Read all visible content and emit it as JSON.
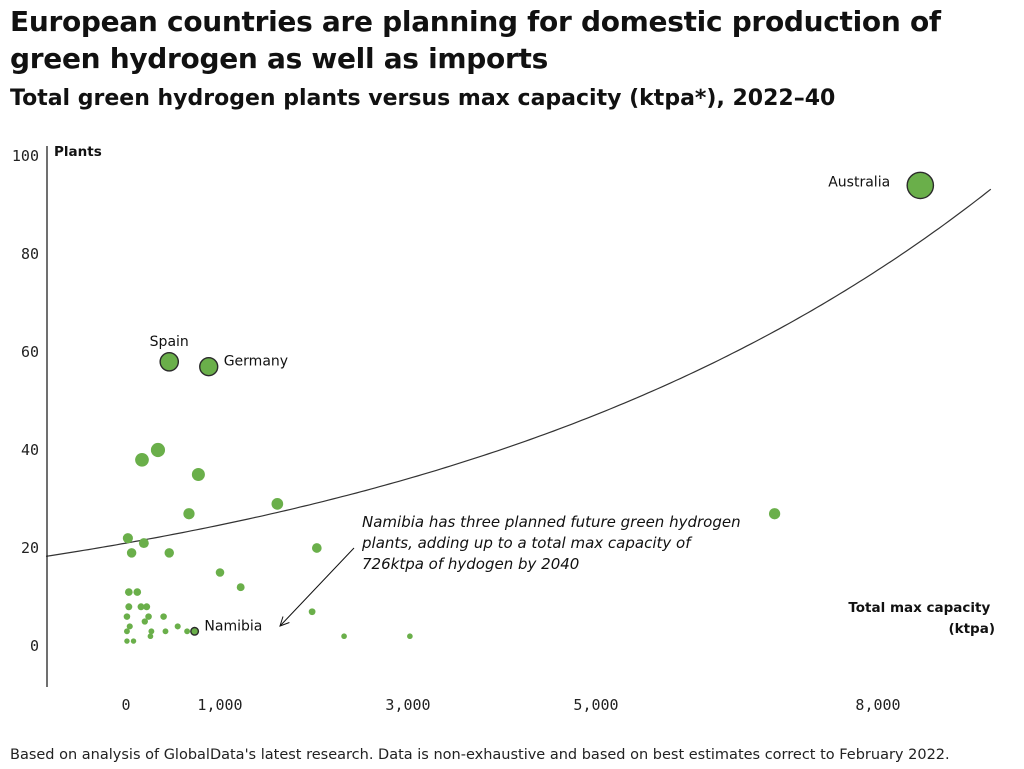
{
  "chart_data": {
    "type": "scatter",
    "title": "European countries are planning for domestic production of green hydrogen as well as imports",
    "subtitle": "Total green hydrogen plants versus max capacity (ktpa*), 2022–40",
    "xlabel": "Total max capacity (ktpa)",
    "ylabel": "Plants",
    "xlim": [
      -850,
      9200
    ],
    "ylim": [
      -8,
      100
    ],
    "x_ticks": [
      {
        "value": 0,
        "label": "0"
      },
      {
        "value": 1000,
        "label": "1,000"
      },
      {
        "value": 3000,
        "label": "3,000"
      },
      {
        "value": 5000,
        "label": "5,000"
      },
      {
        "value": 8000,
        "label": "8,000"
      }
    ],
    "y_ticks": [
      {
        "value": 0,
        "label": "0"
      },
      {
        "value": 20,
        "label": "20"
      },
      {
        "value": 40,
        "label": "40"
      },
      {
        "value": 60,
        "label": "60"
      },
      {
        "value": 80,
        "label": "80"
      },
      {
        "value": 100,
        "label": "100"
      }
    ],
    "grid": false,
    "point_color": "#6aaf4a",
    "outline_color": "#2b2b2b",
    "points": [
      {
        "x": 8450,
        "y": 94,
        "label": "Australia",
        "outlined": true
      },
      {
        "x": 460,
        "y": 58,
        "label": "Spain",
        "outlined": true
      },
      {
        "x": 880,
        "y": 57,
        "label": "Germany",
        "outlined": true
      },
      {
        "x": 730,
        "y": 3,
        "label": "Namibia",
        "outlined": true
      },
      {
        "x": 340,
        "y": 40
      },
      {
        "x": 170,
        "y": 38
      },
      {
        "x": 770,
        "y": 35
      },
      {
        "x": 670,
        "y": 27
      },
      {
        "x": 1610,
        "y": 29
      },
      {
        "x": 6900,
        "y": 27
      },
      {
        "x": 20,
        "y": 22
      },
      {
        "x": 190,
        "y": 21
      },
      {
        "x": 60,
        "y": 19
      },
      {
        "x": 460,
        "y": 19
      },
      {
        "x": 2030,
        "y": 20
      },
      {
        "x": 1000,
        "y": 15
      },
      {
        "x": 1220,
        "y": 12
      },
      {
        "x": 30,
        "y": 11
      },
      {
        "x": 120,
        "y": 11
      },
      {
        "x": 30,
        "y": 8
      },
      {
        "x": 160,
        "y": 8
      },
      {
        "x": 220,
        "y": 8
      },
      {
        "x": 10,
        "y": 6
      },
      {
        "x": 240,
        "y": 6
      },
      {
        "x": 400,
        "y": 6
      },
      {
        "x": 200,
        "y": 5
      },
      {
        "x": 40,
        "y": 4
      },
      {
        "x": 550,
        "y": 4
      },
      {
        "x": 10,
        "y": 3
      },
      {
        "x": 270,
        "y": 3
      },
      {
        "x": 420,
        "y": 3
      },
      {
        "x": 650,
        "y": 3
      },
      {
        "x": 260,
        "y": 2
      },
      {
        "x": 10,
        "y": 1
      },
      {
        "x": 80,
        "y": 1
      },
      {
        "x": 1980,
        "y": 7
      },
      {
        "x": 2320,
        "y": 2
      },
      {
        "x": 3020,
        "y": 2
      }
    ],
    "trendline": {
      "type": "exponential",
      "a": 21,
      "b": 0.000162
    },
    "annotations": [
      {
        "text_lines": [
          "Namibia has three planned future green hydrogen",
          "plants, adding up to a total max capacity of",
          "726ktpa of hydogen by 2040"
        ],
        "points_to": "Namibia"
      }
    ]
  },
  "footnote": "Based on analysis of GlobalData's latest research. Data is non-exhaustive and based on best estimates correct to February 2022."
}
